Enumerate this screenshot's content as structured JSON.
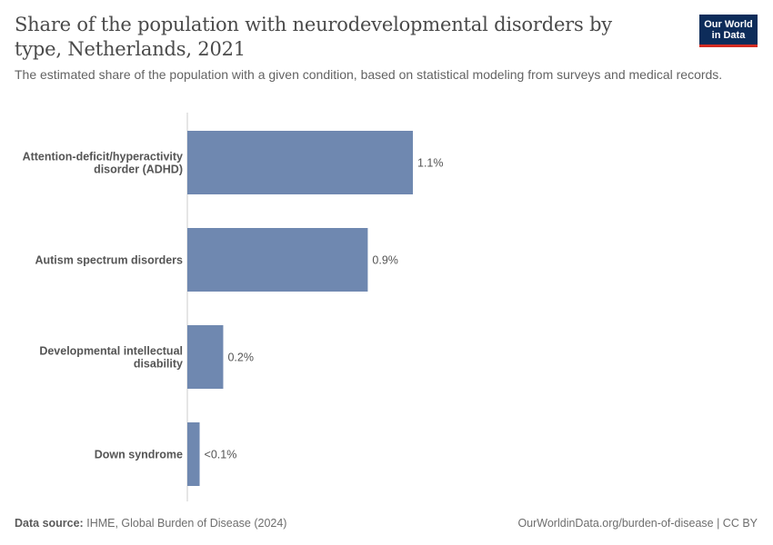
{
  "header": {
    "title": "Share of the population with neurodevelopmental disorders by type, Netherlands, 2021",
    "subtitle": "The estimated share of the population with a given condition, based on statistical modeling from surveys and medical records.",
    "logo_line1": "Our World",
    "logo_line2": "in Data"
  },
  "colors": {
    "bar": "#6f88b0",
    "axis": "#cccccc",
    "logo_bg": "#0d2c5a",
    "logo_accent": "#d42b21"
  },
  "chart_data": {
    "type": "bar",
    "orientation": "horizontal",
    "categories": [
      [
        "Attention-deficit/hyperactivity",
        "disorder (ADHD)"
      ],
      [
        "Autism spectrum disorders"
      ],
      [
        "Developmental intellectual",
        "disability"
      ],
      [
        "Down syndrome"
      ]
    ],
    "values": [
      1.1,
      0.88,
      0.175,
      0.06
    ],
    "value_labels": [
      "1.1%",
      "0.9%",
      "0.2%",
      "<0.1%"
    ],
    "xlim": [
      0,
      1.1
    ],
    "grid": false,
    "legend": "none"
  },
  "footer": {
    "source_label": "Data source:",
    "source_text": "IHME, Global Burden of Disease (2024)",
    "credit": "OurWorldinData.org/burden-of-disease | CC BY"
  }
}
